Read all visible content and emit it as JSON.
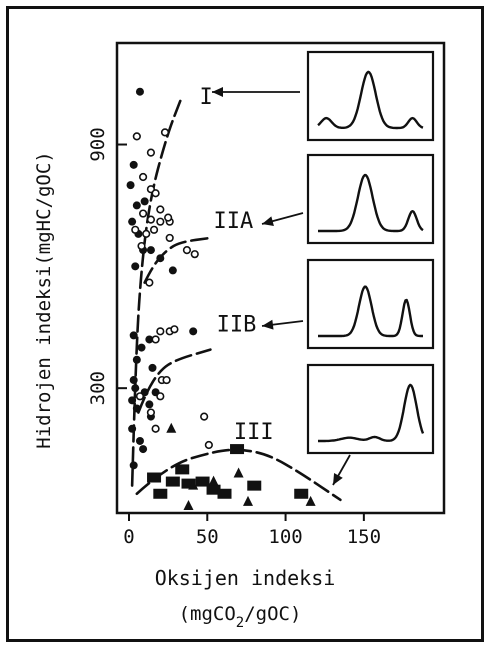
{
  "chart_data": {
    "type": "scatter",
    "title": "",
    "ylabel": "Hidrojen indeksi(mgHC/gOC)",
    "xlabel_line1": "Oksijen indeksi",
    "xlabel_line2_a": "(mgCO",
    "xlabel_line2_sub": "2",
    "xlabel_line2_b": "/gOC)",
    "xlim": [
      0,
      175
    ],
    "ylim": [
      0,
      1150
    ],
    "x_ticks": [
      {
        "value": 0,
        "label": "0"
      },
      {
        "value": 50,
        "label": "50"
      },
      {
        "value": 100,
        "label": "100"
      },
      {
        "value": 150,
        "label": "150"
      }
    ],
    "y_ticks": [
      {
        "value": 300,
        "label": "300"
      },
      {
        "value": 900,
        "label": "900"
      }
    ],
    "curve_labels": [
      {
        "text": "I",
        "x": 45,
        "y": 1000
      },
      {
        "text": "IIA",
        "x": 54,
        "y": 695
      },
      {
        "text": "IIB",
        "x": 56,
        "y": 440
      },
      {
        "text": "III",
        "x": 67,
        "y": 175
      }
    ],
    "curves": [
      {
        "name": "I",
        "points": [
          [
            2,
            60
          ],
          [
            4,
            330
          ],
          [
            7,
            560
          ],
          [
            13,
            760
          ],
          [
            24,
            920
          ],
          [
            33,
            1010
          ]
        ]
      },
      {
        "name": "IIA",
        "points": [
          [
            10,
            560
          ],
          [
            15,
            600
          ],
          [
            24,
            640
          ],
          [
            33,
            660
          ],
          [
            52,
            670
          ]
        ]
      },
      {
        "name": "IIB",
        "points": [
          [
            6,
            240
          ],
          [
            11,
            290
          ],
          [
            20,
            345
          ],
          [
            30,
            370
          ],
          [
            52,
            395
          ]
        ]
      },
      {
        "name": "III",
        "points": [
          [
            5,
            40
          ],
          [
            25,
            110
          ],
          [
            55,
            145
          ],
          [
            72,
            150
          ],
          [
            90,
            135
          ],
          [
            110,
            90
          ],
          [
            135,
            25
          ]
        ]
      }
    ],
    "series": [
      {
        "marker": "filled-circle",
        "points": [
          [
            7,
            1030
          ],
          [
            3,
            850
          ],
          [
            1,
            800
          ],
          [
            5,
            750
          ],
          [
            10,
            760
          ],
          [
            2,
            710
          ],
          [
            6,
            680
          ],
          [
            9,
            640
          ],
          [
            14,
            640
          ],
          [
            4,
            600
          ],
          [
            20,
            620
          ],
          [
            28,
            590
          ],
          [
            3,
            430
          ],
          [
            13,
            420
          ],
          [
            41,
            440
          ],
          [
            8,
            400
          ],
          [
            5,
            370
          ],
          [
            15,
            350
          ],
          [
            3,
            320
          ],
          [
            17,
            290
          ],
          [
            4,
            300
          ],
          [
            10,
            290
          ],
          [
            2,
            270
          ],
          [
            5,
            250
          ],
          [
            14,
            230
          ],
          [
            2,
            200
          ],
          [
            7,
            170
          ],
          [
            9,
            150
          ],
          [
            13,
            260
          ],
          [
            3,
            110
          ]
        ]
      },
      {
        "marker": "open-circle",
        "points": [
          [
            5,
            920
          ],
          [
            14,
            880
          ],
          [
            23,
            930
          ],
          [
            9,
            820
          ],
          [
            14,
            790
          ],
          [
            17,
            780
          ],
          [
            9,
            730
          ],
          [
            20,
            710
          ],
          [
            14,
            715
          ],
          [
            20,
            740
          ],
          [
            26,
            710
          ],
          [
            25,
            720
          ],
          [
            4,
            690
          ],
          [
            11,
            680
          ],
          [
            16,
            690
          ],
          [
            26,
            670
          ],
          [
            8,
            650
          ],
          [
            37,
            640
          ],
          [
            42,
            630
          ],
          [
            13,
            560
          ],
          [
            17,
            420
          ],
          [
            20,
            440
          ],
          [
            26,
            440
          ],
          [
            29,
            445
          ],
          [
            21,
            320
          ],
          [
            24,
            320
          ],
          [
            7,
            280
          ],
          [
            20,
            280
          ],
          [
            14,
            240
          ],
          [
            17,
            200
          ],
          [
            48,
            230
          ],
          [
            51,
            160
          ]
        ]
      },
      {
        "marker": "filled-square",
        "points": [
          [
            69,
            150
          ],
          [
            16,
            80
          ],
          [
            34,
            100
          ],
          [
            47,
            70
          ],
          [
            20,
            40
          ],
          [
            54,
            50
          ],
          [
            80,
            60
          ],
          [
            61,
            40
          ],
          [
            110,
            40
          ],
          [
            38,
            65
          ],
          [
            28,
            70
          ]
        ]
      },
      {
        "marker": "filled-triangle",
        "points": [
          [
            27,
            200
          ],
          [
            41,
            60
          ],
          [
            70,
            90
          ],
          [
            54,
            70
          ],
          [
            76,
            20
          ],
          [
            38,
            10
          ],
          [
            116,
            20
          ]
        ]
      }
    ],
    "insets": [
      {
        "name": "I",
        "peaks": [
          {
            "pos": 0.08,
            "h": 0.15,
            "w": 0.05
          },
          {
            "pos": 0.48,
            "h": 0.85,
            "w": 0.07
          },
          {
            "pos": 0.9,
            "h": 0.15,
            "w": 0.04
          }
        ]
      },
      {
        "name": "IIA",
        "peaks": [
          {
            "pos": 0.45,
            "h": 0.85,
            "w": 0.07
          },
          {
            "pos": 0.9,
            "h": 0.3,
            "w": 0.04
          }
        ]
      },
      {
        "name": "IIB",
        "peaks": [
          {
            "pos": 0.45,
            "h": 0.75,
            "w": 0.06
          },
          {
            "pos": 0.84,
            "h": 0.55,
            "w": 0.035
          }
        ]
      },
      {
        "name": "III",
        "peaks": [
          {
            "pos": 0.3,
            "h": 0.05,
            "w": 0.08
          },
          {
            "pos": 0.54,
            "h": 0.06,
            "w": 0.05
          },
          {
            "pos": 0.88,
            "h": 0.85,
            "w": 0.06
          }
        ]
      }
    ],
    "grid": false,
    "legend": "none"
  }
}
